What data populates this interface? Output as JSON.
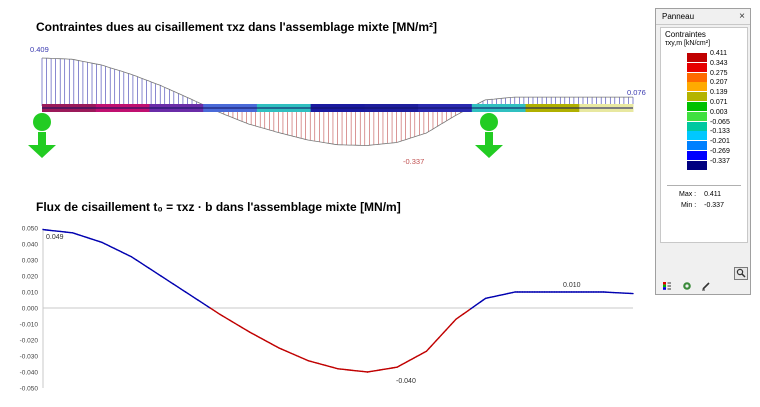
{
  "titles": {
    "stress": "Contraintes dues au cisaillement τxz dans l'assemblage mixte [MN/m²]",
    "flux": "Flux de cisaillement t₀ = τxz · b dans l'assemblage mixte [MN/m]"
  },
  "stress_labels": {
    "max": "0.409",
    "min": "-0.337",
    "right": "0.076"
  },
  "flux_labels": {
    "start": "0.049",
    "min": "-0.040",
    "local_max": "0.010"
  },
  "panel": {
    "title": "Panneau",
    "close": "×",
    "heading": "Contraintes",
    "subheading": "τxy,m [kN/cm²]",
    "scale": [
      {
        "label": "0.411",
        "color": "#c00000"
      },
      {
        "label": "0.343",
        "color": "#e60000"
      },
      {
        "label": "0.275",
        "color": "#ff6a00"
      },
      {
        "label": "0.207",
        "color": "#ffaa00"
      },
      {
        "label": "0.139",
        "color": "#b4b400"
      },
      {
        "label": "0.071",
        "color": "#00c000"
      },
      {
        "label": "0.003",
        "color": "#40e040"
      },
      {
        "label": "-0.065",
        "color": "#00c8a0"
      },
      {
        "label": "-0.133",
        "color": "#00c8ff"
      },
      {
        "label": "-0.201",
        "color": "#0080ff"
      },
      {
        "label": "-0.269",
        "color": "#0000ff"
      },
      {
        "label": "-0.337",
        "color": "#000080"
      }
    ],
    "max_label": "Max :",
    "max_value": "0.411",
    "min_label": "Min :",
    "min_value": "-0.337",
    "zoom_icon": "magnifier-icon",
    "tools": [
      "color-scale-icon",
      "settings-icon",
      "edit-icon"
    ]
  },
  "chart_data": {
    "type": "line",
    "title": "Flux de cisaillement t₀ = τxz · b dans l'assemblage mixte [MN/m]",
    "xlabel": "",
    "ylabel": "",
    "ylim": [
      -0.05,
      0.05
    ],
    "yticks": [
      "0.050",
      "0.040",
      "0.030",
      "0.020",
      "0.010",
      "0.000",
      "-0.010",
      "-0.020",
      "-0.030",
      "-0.040",
      "-0.050"
    ],
    "x": [
      0,
      0.05,
      0.1,
      0.15,
      0.2,
      0.25,
      0.3,
      0.35,
      0.4,
      0.45,
      0.5,
      0.55,
      0.6,
      0.65,
      0.7,
      0.75,
      0.8,
      0.85,
      0.9,
      0.95,
      1.0
    ],
    "values": [
      0.049,
      0.047,
      0.041,
      0.032,
      0.02,
      0.008,
      -0.004,
      -0.015,
      -0.025,
      -0.033,
      -0.038,
      -0.04,
      -0.037,
      -0.027,
      -0.007,
      0.006,
      0.01,
      0.01,
      0.01,
      0.01,
      0.009
    ],
    "colors": {
      "positive": "#0000b0",
      "negative": "#c00000"
    }
  },
  "stress_diagram": {
    "x": [
      0,
      0.05,
      0.1,
      0.15,
      0.2,
      0.25,
      0.3,
      0.35,
      0.4,
      0.45,
      0.5,
      0.55,
      0.6,
      0.65,
      0.7,
      0.75,
      0.8,
      0.85,
      0.9,
      0.95,
      1.0
    ],
    "values": [
      0.409,
      0.399,
      0.35,
      0.272,
      0.176,
      0.064,
      -0.054,
      -0.154,
      -0.226,
      -0.29,
      -0.33,
      -0.337,
      -0.311,
      -0.231,
      -0.08,
      0.052,
      0.076,
      0.076,
      0.076,
      0.076,
      0.076
    ],
    "colors": {
      "positive": "#3a3ab0",
      "negative": "#c05050",
      "beam": "#1e1e9e",
      "support": "#22cc22"
    }
  }
}
